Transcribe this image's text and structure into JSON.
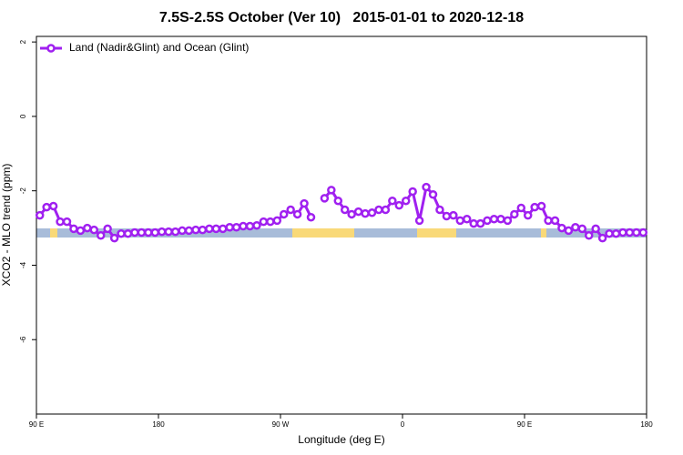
{
  "chart_data": {
    "type": "line",
    "title": "7.5S-2.5S October (Ver 10)   2015-01-01 to 2020-12-18",
    "xlabel": "Longitude (deg E)",
    "ylabel": "XCO2 - MLO trend (ppm)",
    "x": [
      92.5,
      97.5,
      102.5,
      107.5,
      112.5,
      117.5,
      122.5,
      127.5,
      132.5,
      137.5,
      142.5,
      147.5,
      152.5,
      157.5,
      162.5,
      167.5,
      172.5,
      177.5,
      182.5,
      187.5,
      192.5,
      197.5,
      202.5,
      207.5,
      212.5,
      217.5,
      222.5,
      227.5,
      232.5,
      237.5,
      242.5,
      247.5,
      252.5,
      257.5,
      262.5,
      267.5,
      272.5,
      277.5,
      282.5,
      287.5,
      292.5,
      297.5,
      302.5,
      307.5,
      312.5,
      317.5,
      322.5,
      327.5,
      332.5,
      337.5,
      342.5,
      347.5,
      352.5,
      357.5,
      362.5,
      367.5,
      372.5,
      377.5,
      382.5,
      387.5,
      392.5,
      397.5,
      402.5,
      407.5,
      412.5,
      417.5,
      422.5,
      427.5,
      432.5,
      437.5,
      442.5,
      447.5,
      452.5,
      457.5,
      462.5,
      467.5,
      472.5,
      477.5,
      482.5,
      487.5,
      492.5,
      497.5,
      502.5,
      507.5,
      512.5,
      517.5,
      522.5,
      527.5,
      532.5,
      537.5
    ],
    "series": [
      {
        "name": "Land (Nadir&Glint) and Ocean (Glint)",
        "color": "#a020f0",
        "values": [
          -2.66,
          -2.44,
          -2.41,
          -2.83,
          -2.83,
          -3.02,
          -3.07,
          -3.0,
          -3.05,
          -3.2,
          -3.02,
          -3.27,
          -3.15,
          -3.15,
          -3.12,
          -3.12,
          -3.12,
          -3.12,
          -3.1,
          -3.1,
          -3.1,
          -3.07,
          -3.07,
          -3.05,
          -3.05,
          -3.02,
          -3.02,
          -3.02,
          -2.98,
          -2.98,
          -2.95,
          -2.95,
          -2.93,
          -2.83,
          -2.83,
          -2.8,
          -2.63,
          -2.51,
          -2.63,
          -2.34,
          -2.71,
          null,
          -2.2,
          -1.98,
          -2.27,
          -2.51,
          -2.63,
          -2.56,
          -2.61,
          -2.59,
          -2.51,
          -2.51,
          -2.27,
          -2.39,
          -2.27,
          -2.02,
          -2.8,
          -1.9,
          -2.1,
          -2.51,
          -2.68,
          -2.66,
          -2.8,
          -2.76,
          -2.88,
          -2.88,
          -2.8,
          -2.76,
          -2.76,
          -2.8,
          -2.63,
          -2.46,
          -2.66,
          -2.44,
          -2.41,
          -2.8,
          -2.8,
          -3.0,
          -3.07,
          -2.98,
          -3.02,
          -3.2,
          -3.02,
          -3.27,
          -3.15,
          -3.15,
          -3.12,
          -3.12,
          -3.12,
          -3.12
        ]
      }
    ],
    "xlim": [
      90,
      540
    ],
    "xticks": [
      {
        "value": 90,
        "label": "90 E"
      },
      180,
      {
        "value": 270,
        "label": "90 W"
      },
      {
        "value": 360,
        "label": "0"
      },
      {
        "value": 450,
        "label": "90 E"
      },
      {
        "value": 540,
        "label": "180"
      }
    ],
    "ylim": [
      -8,
      2.15
    ],
    "yticks": [
      -6,
      -4,
      -2,
      0,
      2
    ],
    "legend": "top-left"
  }
}
